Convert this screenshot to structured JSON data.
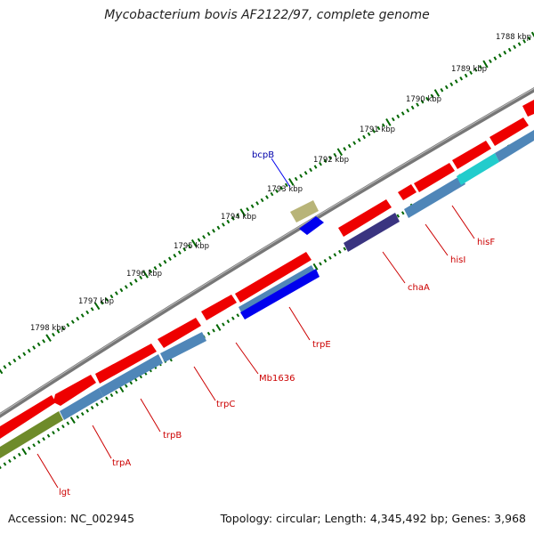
{
  "title": "Mycobacterium bovis AF2122/97, complete genome",
  "accession": "Accession: NC_002945",
  "topology": "Topology: circular; Length: 4,345,492 bp; Genes: 3,968",
  "kbp_labels": [
    "1788 kbp",
    "1789 kbp",
    "1790 kbp",
    "1791 kbp",
    "1792 kbp",
    "1793 kbp",
    "1794 kbp",
    "1795 kbp",
    "1796 kbp",
    "1797 kbp",
    "1798 kbp"
  ],
  "gene_labels": [
    "lgt",
    "trpA",
    "trpB",
    "trpC",
    "Mb1636",
    "trpE",
    "chaA",
    "hisI",
    "hisF"
  ],
  "feature_labels": [
    "bcpB"
  ],
  "colors": {
    "cds": "#ee0000",
    "gene_blue": "#4f86b8",
    "gene_olive": "#6e8b2a",
    "gene_cyan": "#22cccc",
    "gene_navy": "#3a3480",
    "gene_bright_blue": "#0000ee",
    "gene_khaki": "#b8b478",
    "backbone": "#7a7a7a",
    "tick": "#006600",
    "label_red": "#cc0000",
    "label_blue": "#0000aa"
  }
}
